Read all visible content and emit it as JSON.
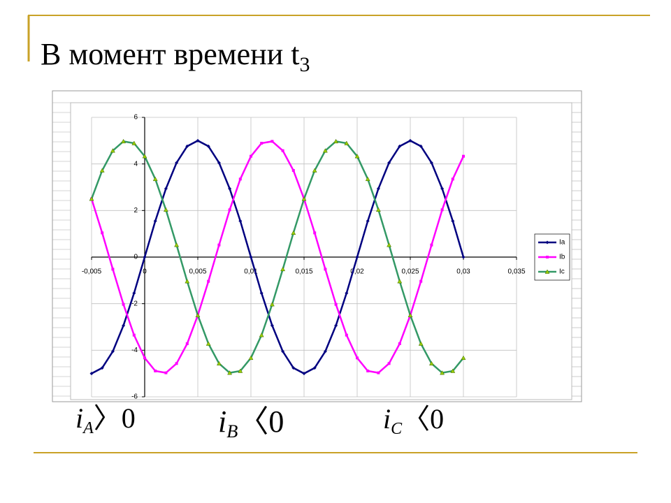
{
  "title": "В момент времени t",
  "title_subscript": "3",
  "chart_data": {
    "type": "line",
    "x": [
      -0.005,
      -0.004,
      -0.003,
      -0.002,
      -0.001,
      0,
      0.001,
      0.002,
      0.003,
      0.004,
      0.005,
      0.006,
      0.007,
      0.008,
      0.009,
      0.01,
      0.011,
      0.012,
      0.013,
      0.014,
      0.015,
      0.016,
      0.017,
      0.018,
      0.019,
      0.02,
      0.021,
      0.022,
      0.023,
      0.024,
      0.025,
      0.026,
      0.027,
      0.028,
      0.029,
      0.03
    ],
    "series": [
      {
        "name": "Ia",
        "color": "#000080",
        "marker": "diamond",
        "values": [
          -5,
          -4.76,
          -4.05,
          -2.94,
          -1.55,
          0,
          1.55,
          2.94,
          4.05,
          4.76,
          5,
          4.76,
          4.05,
          2.94,
          1.55,
          0,
          -1.55,
          -2.94,
          -4.05,
          -4.76,
          -5,
          -4.76,
          -4.05,
          -2.94,
          -1.55,
          0,
          1.55,
          2.94,
          4.05,
          4.76,
          5,
          4.76,
          4.05,
          2.94,
          1.55,
          0
        ]
      },
      {
        "name": "Ib",
        "color": "#ff00ff",
        "marker": "square",
        "values": [
          2.5,
          1.04,
          -0.52,
          -2.03,
          -3.35,
          -4.33,
          -4.89,
          -4.97,
          -4.57,
          -3.72,
          -2.5,
          -1.04,
          0.52,
          2.03,
          3.35,
          4.33,
          4.89,
          4.97,
          4.57,
          3.72,
          2.5,
          1.04,
          -0.52,
          -2.03,
          -3.35,
          -4.33,
          -4.89,
          -4.97,
          -4.57,
          -3.72,
          -2.5,
          -1.04,
          0.52,
          2.03,
          3.35,
          4.33
        ]
      },
      {
        "name": "Ic",
        "color": "#339966",
        "marker": "triangle",
        "marker_color": "#99cc00",
        "values": [
          2.5,
          3.72,
          4.57,
          4.97,
          4.89,
          4.33,
          3.35,
          2.03,
          0.52,
          -1.04,
          -2.5,
          -3.72,
          -4.57,
          -4.97,
          -4.89,
          -4.33,
          -3.35,
          -2.03,
          -0.52,
          1.04,
          2.5,
          3.72,
          4.57,
          4.97,
          4.89,
          4.33,
          3.35,
          2.03,
          0.52,
          -1.04,
          -2.5,
          -3.72,
          -4.57,
          -4.97,
          -4.89,
          -4.33
        ]
      }
    ],
    "xlim": [
      -0.005,
      0.035
    ],
    "xticks": [
      {
        "value": -0.005,
        "label": "-0,005"
      },
      0,
      {
        "value": 0.005,
        "label": "0,005"
      },
      {
        "value": 0.01,
        "label": "0,01"
      },
      {
        "value": 0.015,
        "label": "0,015"
      },
      {
        "value": 0.02,
        "label": "0,02"
      },
      {
        "value": 0.025,
        "label": "0,025"
      },
      {
        "value": 0.03,
        "label": "0,03"
      },
      {
        "value": 0.035,
        "label": "0,035"
      }
    ],
    "ylim": [
      -6,
      6
    ],
    "yticks": [
      -6,
      -4,
      -2,
      0,
      2,
      4,
      6
    ],
    "legend": "right"
  },
  "annotations": [
    {
      "var": "i",
      "sub": "A",
      "rel": "〉0"
    },
    {
      "var": "i",
      "sub": "B",
      "rel": "〈0"
    },
    {
      "var": "i",
      "sub": "C",
      "rel": "〈0"
    }
  ]
}
